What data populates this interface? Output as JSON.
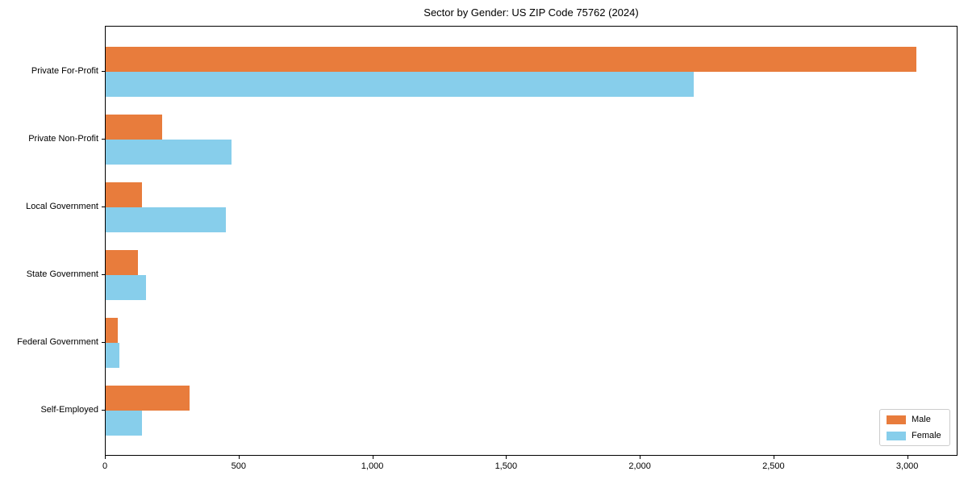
{
  "title": "Sector by Gender: US ZIP Code 75762 (2024)",
  "chart_data": {
    "type": "bar",
    "orientation": "horizontal",
    "title": "Sector by Gender: US ZIP Code 75762 (2024)",
    "categories": [
      "Private For-Profit",
      "Private Non-Profit",
      "Local Government",
      "State Government",
      "Federal Government",
      "Self-Employed"
    ],
    "series": [
      {
        "name": "Male",
        "color": "#e87c3c",
        "values": [
          3030,
          210,
          135,
          120,
          45,
          315
        ]
      },
      {
        "name": "Female",
        "color": "#87ceeb",
        "values": [
          2200,
          470,
          450,
          150,
          50,
          135
        ]
      }
    ],
    "xlabel": "",
    "ylabel": "",
    "xlim": [
      0,
      3182
    ],
    "xticks": [
      0,
      500,
      1000,
      1500,
      2000,
      2500,
      3000
    ],
    "xtick_labels": [
      "0",
      "500",
      "1,000",
      "1,500",
      "2,000",
      "2,500",
      "3,000"
    ],
    "grid": false,
    "legend_position": "lower right",
    "background": "#ffffff",
    "spine_color": "#000000"
  }
}
